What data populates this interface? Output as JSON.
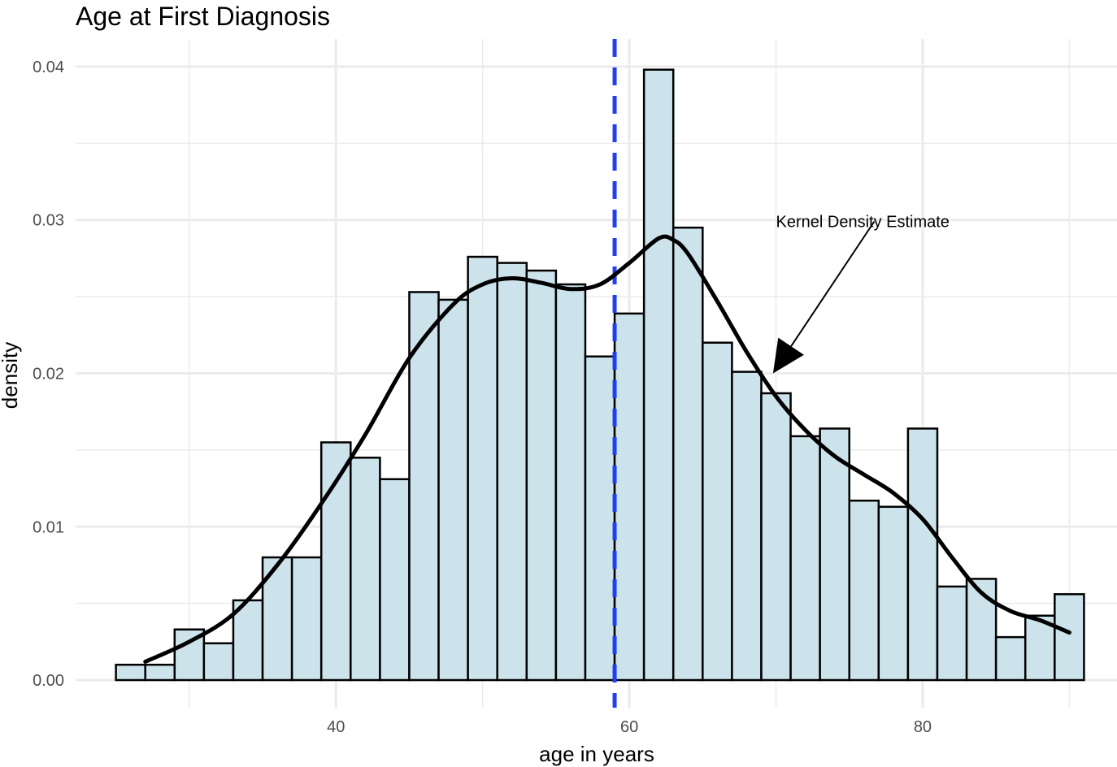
{
  "chart_data": {
    "type": "bar",
    "subtype": "histogram-with-density",
    "title": "Age at First Diagnosis",
    "xlabel": "age in years",
    "ylabel": "density",
    "xlim": [
      22.25,
      93.25
    ],
    "ylim": [
      -0.0018,
      0.0418
    ],
    "x_ticks": [
      40,
      60,
      80
    ],
    "x_tick_labels": [
      "40",
      "60",
      "80"
    ],
    "x_minor_ticks": [
      30,
      50,
      70,
      90
    ],
    "y_ticks": [
      0.0,
      0.01,
      0.02,
      0.03,
      0.04
    ],
    "y_tick_labels": [
      "0.00",
      "0.01",
      "0.02",
      "0.03",
      "0.04"
    ],
    "y_minor_ticks": [
      0.005,
      0.015,
      0.025,
      0.035
    ],
    "grid": true,
    "bin_width": 2,
    "bins": [
      {
        "x_start": 25,
        "x_end": 27,
        "density": 0.001
      },
      {
        "x_start": 27,
        "x_end": 29,
        "density": 0.001
      },
      {
        "x_start": 29,
        "x_end": 31,
        "density": 0.0033
      },
      {
        "x_start": 31,
        "x_end": 33,
        "density": 0.0024
      },
      {
        "x_start": 33,
        "x_end": 35,
        "density": 0.0052
      },
      {
        "x_start": 35,
        "x_end": 37,
        "density": 0.008
      },
      {
        "x_start": 37,
        "x_end": 39,
        "density": 0.008
      },
      {
        "x_start": 39,
        "x_end": 41,
        "density": 0.0155
      },
      {
        "x_start": 41,
        "x_end": 43,
        "density": 0.0145
      },
      {
        "x_start": 43,
        "x_end": 45,
        "density": 0.0131
      },
      {
        "x_start": 45,
        "x_end": 47,
        "density": 0.0253
      },
      {
        "x_start": 47,
        "x_end": 49,
        "density": 0.0248
      },
      {
        "x_start": 49,
        "x_end": 51,
        "density": 0.0276
      },
      {
        "x_start": 51,
        "x_end": 53,
        "density": 0.0272
      },
      {
        "x_start": 53,
        "x_end": 55,
        "density": 0.0267
      },
      {
        "x_start": 55,
        "x_end": 57,
        "density": 0.0258
      },
      {
        "x_start": 57,
        "x_end": 59,
        "density": 0.0211
      },
      {
        "x_start": 59,
        "x_end": 61,
        "density": 0.0239
      },
      {
        "x_start": 61,
        "x_end": 63,
        "density": 0.0398
      },
      {
        "x_start": 63,
        "x_end": 65,
        "density": 0.0295
      },
      {
        "x_start": 65,
        "x_end": 67,
        "density": 0.022
      },
      {
        "x_start": 67,
        "x_end": 69,
        "density": 0.0201
      },
      {
        "x_start": 69,
        "x_end": 71,
        "density": 0.0187
      },
      {
        "x_start": 71,
        "x_end": 73,
        "density": 0.0159
      },
      {
        "x_start": 73,
        "x_end": 75,
        "density": 0.0164
      },
      {
        "x_start": 75,
        "x_end": 77,
        "density": 0.0117
      },
      {
        "x_start": 77,
        "x_end": 79,
        "density": 0.0113
      },
      {
        "x_start": 79,
        "x_end": 81,
        "density": 0.0164
      },
      {
        "x_start": 81,
        "x_end": 83,
        "density": 0.0061
      },
      {
        "x_start": 83,
        "x_end": 85,
        "density": 0.0066
      },
      {
        "x_start": 85,
        "x_end": 87,
        "density": 0.0028
      },
      {
        "x_start": 87,
        "x_end": 89,
        "density": 0.0042
      },
      {
        "x_start": 89,
        "x_end": 91,
        "density": 0.0056
      }
    ],
    "density_curve": {
      "name": "Kernel Density Estimate",
      "x": [
        27,
        30,
        33,
        36,
        39,
        42,
        45,
        48,
        50,
        52,
        54,
        56,
        58,
        60,
        62,
        63,
        64,
        66,
        68,
        70,
        72,
        74,
        76,
        78,
        80,
        82,
        84,
        86,
        88,
        90
      ],
      "y": [
        0.0012,
        0.0025,
        0.0043,
        0.0075,
        0.0115,
        0.016,
        0.021,
        0.0245,
        0.0258,
        0.0262,
        0.0259,
        0.0255,
        0.0258,
        0.0272,
        0.0288,
        0.0287,
        0.0278,
        0.0247,
        0.0214,
        0.0185,
        0.0163,
        0.0146,
        0.0134,
        0.0122,
        0.0105,
        0.008,
        0.0057,
        0.0045,
        0.0039,
        0.0031
      ]
    },
    "reference_line": {
      "x": 59,
      "style": "dashed"
    },
    "annotation": {
      "text": "Kernel Density Estimate",
      "text_x": 70,
      "text_y": 0.0299,
      "arrow_from_x": 76.7,
      "arrow_from_y": 0.0299,
      "arrow_to_x": 69.8,
      "arrow_to_y": 0.02
    },
    "colors": {
      "bar_fill": "#cde3eb",
      "bar_stroke": "#000000",
      "density_line": "#000000",
      "reference_line": "#1f3ff5",
      "grid": "#ebebeb",
      "tick_text": "#4d4d4d",
      "text": "#000000"
    }
  }
}
